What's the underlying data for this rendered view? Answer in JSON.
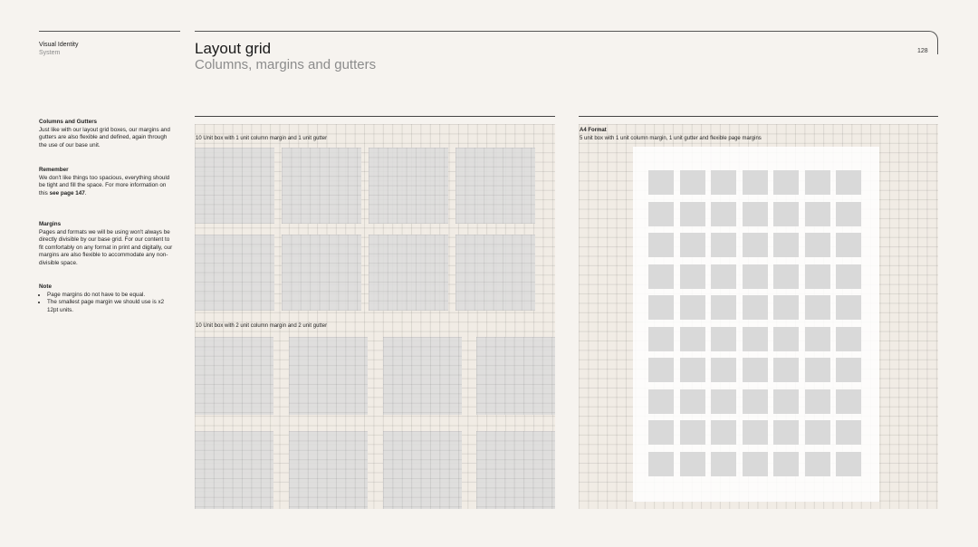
{
  "header": {
    "brand_line1": "Visual Identity",
    "brand_line2": "System",
    "title": "Layout grid",
    "subtitle": "Columns, margins and gutters",
    "page_number": "128"
  },
  "sidebar": {
    "columns_heading": "Columns and Gutters",
    "columns_body": "Just like with our layout grid boxes, our margins and gutters are also flexible and defined, again through the use of our base unit.",
    "remember_heading": "Remember",
    "remember_body_pre": "We don't like things too spacious, everything should be tight and fill the space. For more information on this ",
    "remember_link": "see page 147",
    "remember_body_post": ".",
    "margins_heading": "Margins",
    "margins_body": "Pages and formats we will be using won't always be directly divisible by our base grid. For our content to fit comfortably on any format in print and digitally, our margins are also flexible to accommodate any non-divisible space.",
    "note_heading": "Note",
    "note_items": [
      "Page margins do not have to be equal.",
      "The smallest page margin we should use is x2 12pt units."
    ]
  },
  "panels": {
    "grid1_label": "10 Unit box with 1 unit column margin and 1 unit gutter",
    "grid2_label": "10 Unit box with 2 unit column margin and 2 unit gutter",
    "a4_title": "A4 Format",
    "a4_label": "5 unit box with 1 unit column margin, 1 unit gutter and flexible page margins"
  },
  "colors": {
    "background": "#f6f3ef",
    "grid_fill": "#f1ece5",
    "column_fill": "#dcdcdc",
    "title_gray": "#8c8c8c"
  }
}
